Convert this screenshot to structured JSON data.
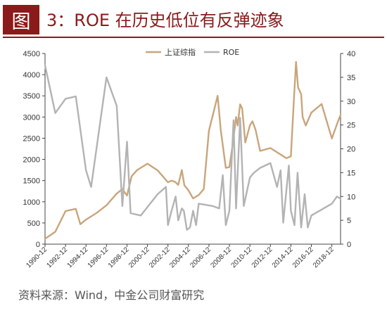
{
  "figure": {
    "badge": "图",
    "title": "3：ROE 在历史低位有反弹迹象",
    "source": "资料来源：Wind，中金公司财富研究"
  },
  "colors": {
    "accent": "#8b1a1a",
    "index_line": "#c9a57b",
    "roe_line": "#b3b3b3"
  },
  "chart_data": {
    "type": "line",
    "title": "",
    "legend_position": "top-center",
    "grid": false,
    "x_ticks": [
      "1990-12",
      "1992-12",
      "1994-12",
      "1996-12",
      "1998-12",
      "2000-12",
      "2002-12",
      "2004-12",
      "2006-12",
      "2008-12",
      "2010-12",
      "2012-12",
      "2014-12",
      "2016-12",
      "2018-12"
    ],
    "xlim": [
      1990.95,
      2019.8
    ],
    "y_left": {
      "lim": [
        0,
        4500
      ],
      "ticks": [
        0,
        500,
        1000,
        1500,
        2000,
        2500,
        3000,
        3500,
        4000,
        4500
      ]
    },
    "y_right": {
      "lim": [
        0,
        40
      ],
      "ticks": [
        0,
        5,
        10,
        15,
        20,
        25,
        30,
        35,
        40
      ]
    },
    "series": [
      {
        "name": "上证综指",
        "axis": "left",
        "points": [
          [
            1990.95,
            127
          ],
          [
            1991.95,
            292
          ],
          [
            1992.95,
            780
          ],
          [
            1993.95,
            833
          ],
          [
            1994.4,
            470
          ],
          [
            1994.95,
            580
          ],
          [
            1995.95,
            730
          ],
          [
            1996.95,
            917
          ],
          [
            1997.95,
            1194
          ],
          [
            1998.5,
            1300
          ],
          [
            1998.95,
            1147
          ],
          [
            1999.4,
            1600
          ],
          [
            1999.95,
            1750
          ],
          [
            2000.95,
            1900
          ],
          [
            2001.95,
            1740
          ],
          [
            2002.95,
            1460
          ],
          [
            2003.3,
            1500
          ],
          [
            2003.65,
            1470
          ],
          [
            2003.95,
            1400
          ],
          [
            2004.3,
            1750
          ],
          [
            2004.55,
            1390
          ],
          [
            2004.95,
            1270
          ],
          [
            2005.4,
            1080
          ],
          [
            2005.95,
            1160
          ],
          [
            2006.45,
            1300
          ],
          [
            2006.95,
            2675
          ],
          [
            2007.8,
            3500
          ],
          [
            2008.1,
            2700
          ],
          [
            2008.6,
            1800
          ],
          [
            2008.95,
            1820
          ],
          [
            2009.3,
            2400
          ],
          [
            2009.6,
            3000
          ],
          [
            2009.75,
            2800
          ],
          [
            2010.0,
            3300
          ],
          [
            2010.2,
            3200
          ],
          [
            2010.5,
            2400
          ],
          [
            2010.95,
            2808
          ],
          [
            2011.2,
            2900
          ],
          [
            2011.5,
            2700
          ],
          [
            2011.95,
            2200
          ],
          [
            2012.95,
            2269
          ],
          [
            2013.95,
            2116
          ],
          [
            2014.5,
            2030
          ],
          [
            2014.95,
            2070
          ],
          [
            2015.2,
            3200
          ],
          [
            2015.45,
            4300
          ],
          [
            2015.65,
            3700
          ],
          [
            2015.95,
            3539
          ],
          [
            2016.1,
            3000
          ],
          [
            2016.4,
            2800
          ],
          [
            2016.95,
            3104
          ],
          [
            2017.95,
            3307
          ],
          [
            2018.95,
            2494
          ],
          [
            2019.55,
            2900
          ],
          [
            2019.8,
            3050
          ]
        ]
      },
      {
        "name": "ROE",
        "axis": "right",
        "points": [
          [
            1990.95,
            37.5
          ],
          [
            1991.95,
            27.5
          ],
          [
            1992.95,
            30.5
          ],
          [
            1993.95,
            31
          ],
          [
            1994.95,
            15.5
          ],
          [
            1995.45,
            12
          ],
          [
            1996.95,
            35
          ],
          [
            1997.95,
            29
          ],
          [
            1998.5,
            8
          ],
          [
            1998.95,
            21.5
          ],
          [
            1999.3,
            6.5
          ],
          [
            2000.3,
            6
          ],
          [
            2001.95,
            10.5
          ],
          [
            2002.75,
            12
          ],
          [
            2002.95,
            4
          ],
          [
            2003.3,
            7
          ],
          [
            2003.7,
            10
          ],
          [
            2003.95,
            5
          ],
          [
            2004.3,
            7.5
          ],
          [
            2004.5,
            7
          ],
          [
            2004.8,
            3
          ],
          [
            2005.1,
            3.5
          ],
          [
            2005.4,
            7
          ],
          [
            2005.7,
            4
          ],
          [
            2005.95,
            8.5
          ],
          [
            2007.3,
            8
          ],
          [
            2007.95,
            7.5
          ],
          [
            2008.3,
            14.5
          ],
          [
            2008.6,
            4
          ],
          [
            2008.95,
            7
          ],
          [
            2009.35,
            26
          ],
          [
            2009.6,
            7.5
          ],
          [
            2010.0,
            26.5
          ],
          [
            2010.35,
            8
          ],
          [
            2010.95,
            14
          ],
          [
            2011.35,
            15
          ],
          [
            2011.95,
            16
          ],
          [
            2012.95,
            17
          ],
          [
            2013.6,
            12
          ],
          [
            2013.95,
            15.5
          ],
          [
            2014.2,
            4.5
          ],
          [
            2014.75,
            16.5
          ],
          [
            2014.95,
            7
          ],
          [
            2015.3,
            4
          ],
          [
            2015.6,
            15
          ],
          [
            2015.95,
            3.5
          ],
          [
            2016.3,
            10.5
          ],
          [
            2016.6,
            3.5
          ],
          [
            2016.95,
            6
          ],
          [
            2018.95,
            8.5
          ],
          [
            2019.45,
            10
          ],
          [
            2019.8,
            9.5
          ]
        ]
      }
    ]
  }
}
